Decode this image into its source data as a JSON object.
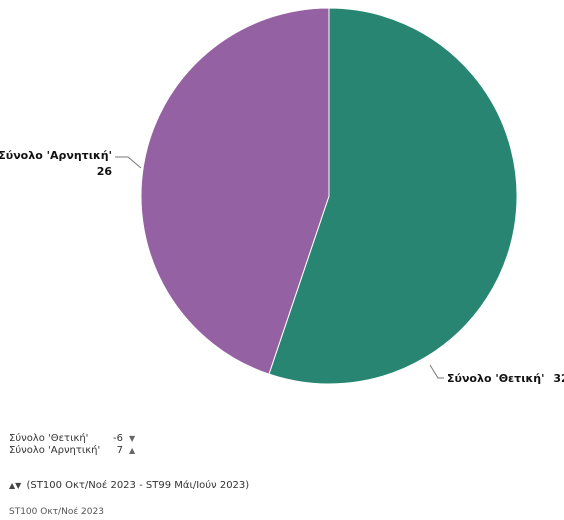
{
  "chart_data": {
    "type": "pie",
    "categories": [
      "Σύνολο 'Θετική'",
      "Σύνολο 'Αρνητική'"
    ],
    "values": [
      32,
      26
    ],
    "colors": [
      "#278572",
      "#9462a2"
    ],
    "data_labels": [
      {
        "name": "Σύνολο 'Θετική'",
        "value": "32"
      },
      {
        "name": "Σύνολο 'Αρνητική'",
        "value": "26"
      }
    ]
  },
  "summary": {
    "rows": [
      {
        "name": "Σύνολο 'Θετική'",
        "change": "-6",
        "direction": "down",
        "icon": "triangle-down-icon",
        "glyph": "▼"
      },
      {
        "name": "Σύνολο 'Αρνητική'",
        "change": "7",
        "direction": "up",
        "icon": "triangle-up-icon",
        "glyph": "▲"
      }
    ]
  },
  "period": {
    "arrows": "▲▼",
    "text": "(ST100 Οκτ/Νοέ 2023 - ST99 Μάι/Ιούν 2023)"
  },
  "footer": {
    "text": "ST100 Οκτ/Νοέ 2023"
  }
}
